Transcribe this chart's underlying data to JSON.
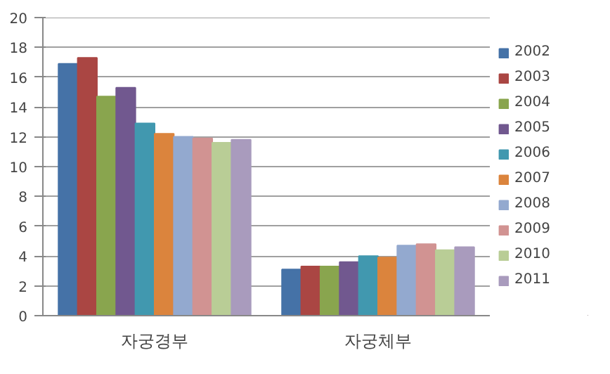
{
  "chart_data": {
    "type": "bar",
    "categories": [
      "자궁경부",
      "자궁체부"
    ],
    "series": [
      {
        "name": "2002",
        "color": "#4572a7",
        "values": [
          16.9,
          3.1
        ]
      },
      {
        "name": "2003",
        "color": "#aa4643",
        "values": [
          17.3,
          3.3
        ]
      },
      {
        "name": "2004",
        "color": "#89a54e",
        "values": [
          14.7,
          3.3
        ]
      },
      {
        "name": "2005",
        "color": "#71588f",
        "values": [
          15.3,
          3.6
        ]
      },
      {
        "name": "2006",
        "color": "#4198af",
        "values": [
          12.9,
          4.0
        ]
      },
      {
        "name": "2007",
        "color": "#db843d",
        "values": [
          12.2,
          3.9
        ]
      },
      {
        "name": "2008",
        "color": "#93a9cf",
        "values": [
          12.0,
          4.7
        ]
      },
      {
        "name": "2009",
        "color": "#d19392",
        "values": [
          11.9,
          4.8
        ]
      },
      {
        "name": "2010",
        "color": "#b9cd96",
        "values": [
          11.6,
          4.4
        ]
      },
      {
        "name": "2011",
        "color": "#a99bbd",
        "values": [
          11.8,
          4.6
        ]
      }
    ],
    "ylim": [
      0,
      20
    ],
    "yticks": [
      0,
      2,
      4,
      6,
      8,
      10,
      12,
      14,
      16,
      18,
      20
    ],
    "grid": "y",
    "legend": "right"
  }
}
